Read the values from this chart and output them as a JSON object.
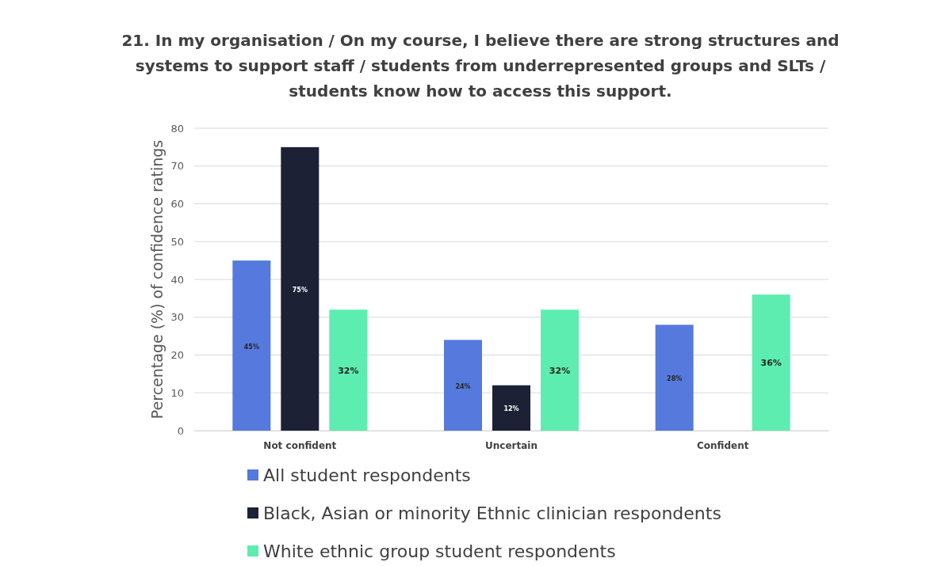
{
  "chart_data": {
    "type": "bar",
    "title": "21. In my organisation / On my course, I believe there are strong structures and systems to support staff / students from underrepresented groups and SLTs / students know how to access this support.",
    "ylabel": "Percentage (%) of confidence ratings",
    "categories": [
      "Not confident",
      "Uncertain",
      "Confident"
    ],
    "series": [
      {
        "name": "All student respondents",
        "color": "#5579dd",
        "values": [
          45,
          24,
          28
        ],
        "value_labels": [
          "45%",
          "24%",
          "28%"
        ]
      },
      {
        "name": "Black, Asian or minority Ethnic clinician respondents",
        "color": "#1c2136",
        "values": [
          75,
          12,
          null
        ],
        "value_labels": [
          "75%",
          "12%",
          null
        ]
      },
      {
        "name": "White ethnic group student respondents",
        "color": "#5eedb0",
        "values": [
          32,
          32,
          36
        ],
        "value_labels": [
          "32%",
          "32%",
          "36%"
        ]
      }
    ],
    "ylim": [
      0,
      80
    ],
    "yticks": [
      0,
      10,
      20,
      30,
      40,
      50,
      60,
      70,
      80
    ],
    "grid": "y",
    "legend": "bottom"
  }
}
